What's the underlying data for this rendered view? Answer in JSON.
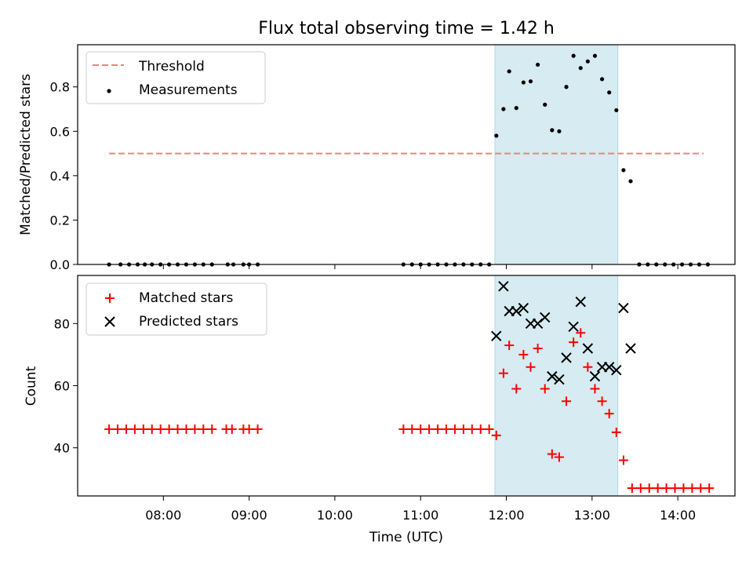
{
  "chart_data": [
    {
      "type": "scatter",
      "title": "Flux total observing time = 1.42 h",
      "xlabel": "",
      "ylabel": "Matched/Predicted stars",
      "xlim": [
        "07:00",
        "14:40"
      ],
      "ylim": [
        0,
        0.99
      ],
      "yticks": [
        "0.0",
        "0.2",
        "0.4",
        "0.6",
        "0.8"
      ],
      "xticks": [
        "08:00",
        "09:00",
        "10:00",
        "11:00",
        "12:00",
        "13:00",
        "14:00"
      ],
      "highlight_span": [
        "11:52",
        "13:18"
      ],
      "legend_position": "top-left",
      "threshold": {
        "name": "Threshold",
        "value": 0.5,
        "x_range": [
          "07:22",
          "14:18"
        ],
        "color": "#f08080",
        "style": "dashed"
      },
      "series": [
        {
          "name": "Measurements",
          "color": "#000000",
          "marker": "dot",
          "points": [
            [
              "07:22",
              0
            ],
            [
              "07:30",
              0
            ],
            [
              "07:36",
              0
            ],
            [
              "07:42",
              0
            ],
            [
              "07:47",
              0
            ],
            [
              "07:52",
              0
            ],
            [
              "07:58",
              0
            ],
            [
              "08:04",
              0
            ],
            [
              "08:10",
              0
            ],
            [
              "08:16",
              0
            ],
            [
              "08:22",
              0
            ],
            [
              "08:28",
              0
            ],
            [
              "08:34",
              0
            ],
            [
              "08:45",
              0
            ],
            [
              "08:49",
              0
            ],
            [
              "08:56",
              0
            ],
            [
              "09:00",
              0
            ],
            [
              "09:06",
              0
            ],
            [
              "10:48",
              0
            ],
            [
              "10:54",
              0
            ],
            [
              "11:00",
              0
            ],
            [
              "11:06",
              0
            ],
            [
              "11:12",
              0
            ],
            [
              "11:18",
              0
            ],
            [
              "11:24",
              0
            ],
            [
              "11:30",
              0
            ],
            [
              "11:36",
              0
            ],
            [
              "11:42",
              0
            ],
            [
              "11:48",
              0
            ],
            [
              "11:53",
              0.58
            ],
            [
              "11:58",
              0.7
            ],
            [
              "12:02",
              0.87
            ],
            [
              "12:07",
              0.705
            ],
            [
              "12:12",
              0.82
            ],
            [
              "12:17",
              0.825
            ],
            [
              "12:22",
              0.9
            ],
            [
              "12:27",
              0.72
            ],
            [
              "12:32",
              0.605
            ],
            [
              "12:37",
              0.6
            ],
            [
              "12:42",
              0.8
            ],
            [
              "12:47",
              0.94
            ],
            [
              "12:52",
              0.885
            ],
            [
              "12:57",
              0.915
            ],
            [
              "13:02",
              0.94
            ],
            [
              "13:07",
              0.835
            ],
            [
              "13:12",
              0.775
            ],
            [
              "13:17",
              0.695
            ],
            [
              "13:22",
              0.425
            ],
            [
              "13:27",
              0.375
            ],
            [
              "13:33",
              0
            ],
            [
              "13:39",
              0
            ],
            [
              "13:45",
              0
            ],
            [
              "13:51",
              0
            ],
            [
              "13:57",
              0
            ],
            [
              "14:03",
              0
            ],
            [
              "14:09",
              0
            ],
            [
              "14:15",
              0
            ],
            [
              "14:21",
              0
            ]
          ]
        }
      ]
    },
    {
      "type": "scatter",
      "title": "",
      "xlabel": "Time (UTC)",
      "ylabel": "Count",
      "xlim": [
        "07:00",
        "14:40"
      ],
      "ylim": [
        24.5,
        95.5
      ],
      "yticks": [
        "40",
        "60",
        "80"
      ],
      "xticks": [
        "08:00",
        "09:00",
        "10:00",
        "11:00",
        "12:00",
        "13:00",
        "14:00"
      ],
      "highlight_span": [
        "11:52",
        "13:18"
      ],
      "legend_position": "top-left",
      "series": [
        {
          "name": "Matched stars",
          "color": "#ff0000",
          "marker": "plus",
          "points": [
            [
              "07:22",
              46
            ],
            [
              "07:28",
              46
            ],
            [
              "07:34",
              46
            ],
            [
              "07:40",
              46
            ],
            [
              "07:46",
              46
            ],
            [
              "07:52",
              46
            ],
            [
              "07:58",
              46
            ],
            [
              "08:04",
              46
            ],
            [
              "08:10",
              46
            ],
            [
              "08:16",
              46
            ],
            [
              "08:22",
              46
            ],
            [
              "08:28",
              46
            ],
            [
              "08:34",
              46
            ],
            [
              "08:44",
              46
            ],
            [
              "08:48",
              46
            ],
            [
              "08:56",
              46
            ],
            [
              "09:00",
              46
            ],
            [
              "09:06",
              46
            ],
            [
              "10:48",
              46
            ],
            [
              "10:54",
              46
            ],
            [
              "11:00",
              46
            ],
            [
              "11:06",
              46
            ],
            [
              "11:12",
              46
            ],
            [
              "11:18",
              46
            ],
            [
              "11:24",
              46
            ],
            [
              "11:30",
              46
            ],
            [
              "11:36",
              46
            ],
            [
              "11:42",
              46
            ],
            [
              "11:48",
              46
            ],
            [
              "11:53",
              44
            ],
            [
              "11:58",
              64
            ],
            [
              "12:02",
              73
            ],
            [
              "12:07",
              59
            ],
            [
              "12:12",
              70
            ],
            [
              "12:17",
              66
            ],
            [
              "12:22",
              72
            ],
            [
              "12:27",
              59
            ],
            [
              "12:32",
              38
            ],
            [
              "12:37",
              37
            ],
            [
              "12:42",
              55
            ],
            [
              "12:47",
              74
            ],
            [
              "12:52",
              77
            ],
            [
              "12:57",
              66
            ],
            [
              "13:02",
              59
            ],
            [
              "13:07",
              55
            ],
            [
              "13:12",
              51
            ],
            [
              "13:17",
              45
            ],
            [
              "13:22",
              36
            ],
            [
              "13:28",
              27
            ],
            [
              "13:34",
              27
            ],
            [
              "13:40",
              27
            ],
            [
              "13:46",
              27
            ],
            [
              "13:52",
              27
            ],
            [
              "13:58",
              27
            ],
            [
              "14:04",
              27
            ],
            [
              "14:10",
              27
            ],
            [
              "14:16",
              27
            ],
            [
              "14:22",
              27
            ]
          ]
        },
        {
          "name": "Predicted stars",
          "color": "#000000",
          "marker": "x",
          "points": [
            [
              "11:53",
              76
            ],
            [
              "11:58",
              92
            ],
            [
              "12:02",
              84
            ],
            [
              "12:07",
              84
            ],
            [
              "12:12",
              85
            ],
            [
              "12:17",
              80
            ],
            [
              "12:22",
              80
            ],
            [
              "12:27",
              82
            ],
            [
              "12:32",
              63
            ],
            [
              "12:37",
              62
            ],
            [
              "12:42",
              69
            ],
            [
              "12:47",
              79
            ],
            [
              "12:52",
              87
            ],
            [
              "12:57",
              72
            ],
            [
              "13:02",
              63
            ],
            [
              "13:07",
              66
            ],
            [
              "13:12",
              66
            ],
            [
              "13:17",
              65
            ],
            [
              "13:22",
              85
            ],
            [
              "13:27",
              72
            ]
          ]
        }
      ]
    }
  ]
}
